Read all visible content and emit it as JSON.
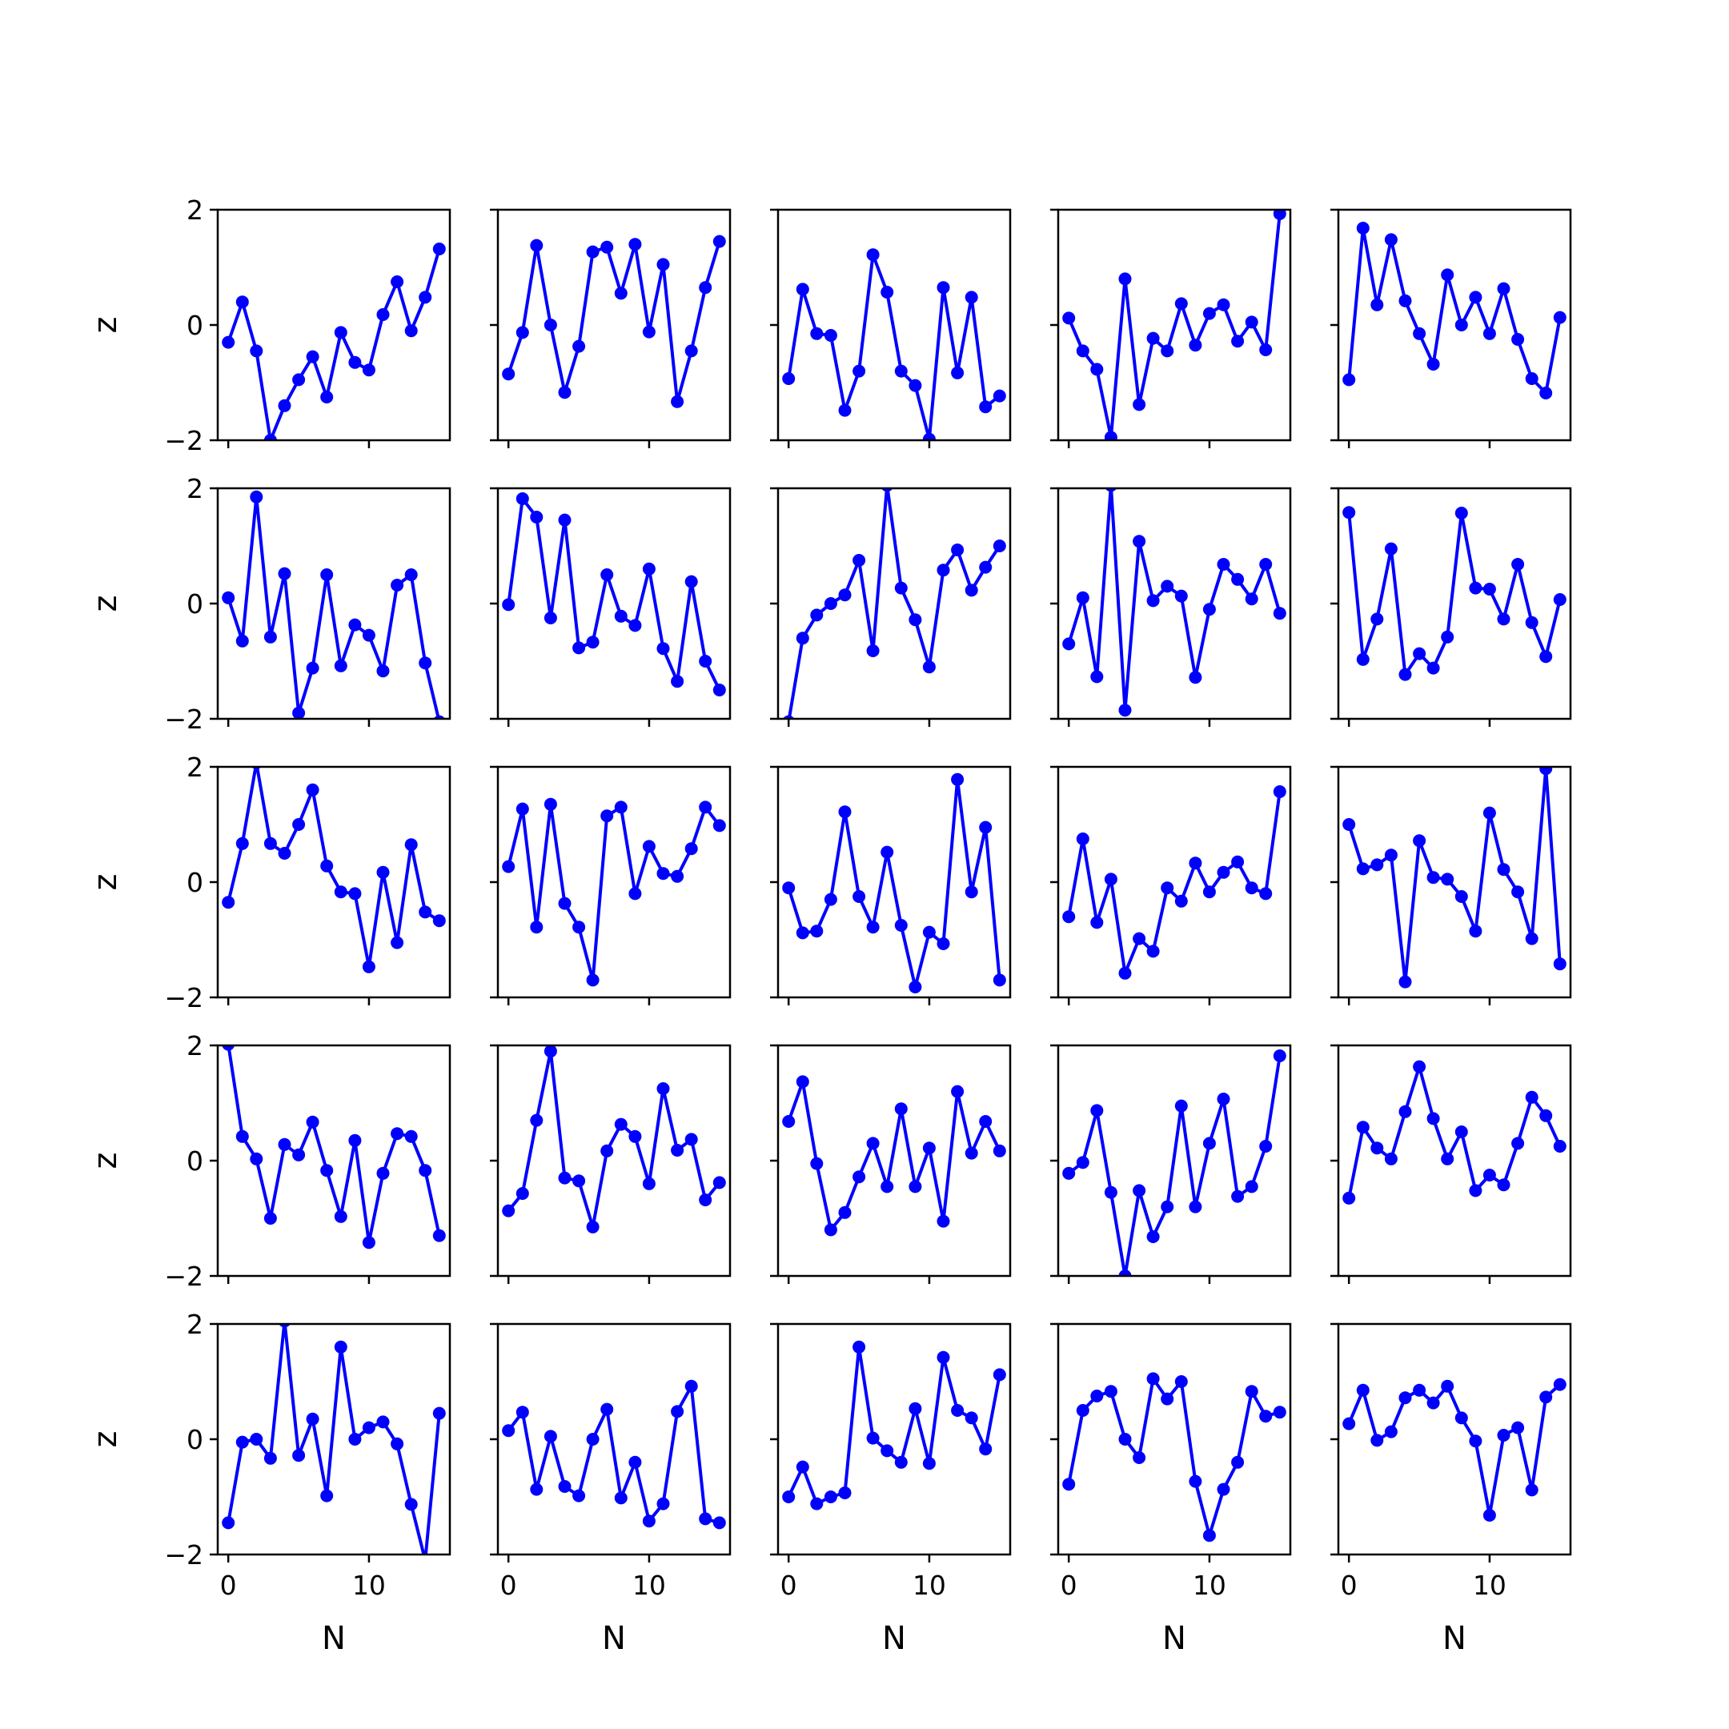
{
  "chart_data": {
    "type": "line",
    "layout": "5x5 grid of small multiples, shared axes",
    "rows": 5,
    "cols": 5,
    "xlabel": "N",
    "ylabel": "z",
    "xlim": [
      -0.75,
      15.75
    ],
    "ylim": [
      -2,
      2
    ],
    "x_ticks": [
      0,
      10
    ],
    "y_ticks": [
      -2,
      0,
      2
    ],
    "x_tick_labels": [
      "0",
      "10"
    ],
    "y_tick_labels": [
      "−2",
      "0",
      "2"
    ],
    "x": [
      0,
      1,
      2,
      3,
      4,
      5,
      6,
      7,
      8,
      9,
      10,
      11,
      12,
      13,
      14,
      15
    ],
    "series_color": "#0000ff",
    "marker": "circle",
    "grid": false,
    "legend": "none",
    "panels": [
      {
        "values": [
          -0.3,
          0.4,
          -0.45,
          -2.0,
          -1.4,
          -0.95,
          -0.55,
          -1.25,
          -0.13,
          -0.65,
          -0.78,
          0.18,
          0.75,
          -0.1,
          0.48,
          1.32
        ]
      },
      {
        "values": [
          -0.85,
          -0.13,
          1.38,
          0.0,
          -1.17,
          -0.37,
          1.27,
          1.35,
          0.55,
          1.4,
          -0.12,
          1.05,
          -1.33,
          -0.45,
          0.65,
          1.45
        ]
      },
      {
        "values": [
          -0.93,
          0.62,
          -0.15,
          -0.18,
          -1.48,
          -0.8,
          1.22,
          0.57,
          -0.8,
          -1.05,
          -1.98,
          0.65,
          -0.83,
          0.48,
          -1.42,
          -1.23
        ]
      },
      {
        "values": [
          0.12,
          -0.45,
          -0.77,
          -1.95,
          0.8,
          -1.38,
          -0.23,
          -0.45,
          0.37,
          -0.35,
          0.2,
          0.35,
          -0.28,
          0.05,
          -0.43,
          1.93
        ]
      },
      {
        "values": [
          -0.95,
          1.68,
          0.35,
          1.48,
          0.42,
          -0.15,
          -0.68,
          0.87,
          0.0,
          0.48,
          -0.15,
          0.63,
          -0.25,
          -0.93,
          -1.18,
          0.13
        ]
      },
      {
        "values": [
          0.1,
          -0.65,
          1.85,
          -0.58,
          0.52,
          -1.9,
          -1.12,
          0.5,
          -1.08,
          -0.37,
          -0.55,
          -1.17,
          0.32,
          0.5,
          -1.03,
          -2.05
        ]
      },
      {
        "values": [
          -0.02,
          1.82,
          1.5,
          -0.25,
          1.45,
          -0.77,
          -0.67,
          0.5,
          -0.22,
          -0.38,
          0.6,
          -0.78,
          -1.35,
          0.38,
          -1.0,
          -1.5
        ]
      },
      {
        "values": [
          -2.05,
          -0.6,
          -0.2,
          0.0,
          0.15,
          0.75,
          -0.82,
          2.05,
          0.27,
          -0.28,
          -1.1,
          0.58,
          0.93,
          0.23,
          0.63,
          1.0
        ]
      },
      {
        "values": [
          -0.7,
          0.1,
          -1.27,
          2.05,
          -1.85,
          1.08,
          0.05,
          0.3,
          0.13,
          -1.28,
          -0.1,
          0.68,
          0.42,
          0.08,
          0.68,
          -0.17
        ]
      },
      {
        "values": [
          1.58,
          -0.97,
          -0.27,
          0.95,
          -1.23,
          -0.87,
          -1.12,
          -0.58,
          1.57,
          0.27,
          0.25,
          -0.27,
          0.68,
          -0.33,
          -0.92,
          0.07
        ]
      },
      {
        "values": [
          -0.35,
          0.67,
          2.07,
          0.67,
          0.5,
          1.0,
          1.6,
          0.28,
          -0.17,
          -0.2,
          -1.47,
          0.17,
          -1.05,
          0.65,
          -0.52,
          -0.67
        ]
      },
      {
        "values": [
          0.27,
          1.27,
          -0.78,
          1.35,
          -0.37,
          -0.78,
          -1.7,
          1.15,
          1.3,
          -0.2,
          0.62,
          0.15,
          0.1,
          0.58,
          1.3,
          0.98
        ]
      },
      {
        "values": [
          -0.1,
          -0.88,
          -0.85,
          -0.3,
          1.22,
          -0.25,
          -0.78,
          0.52,
          -0.75,
          -1.82,
          -0.87,
          -1.07,
          1.78,
          -0.17,
          0.95,
          -1.7
        ]
      },
      {
        "values": [
          -0.6,
          0.75,
          -0.7,
          0.05,
          -1.58,
          -0.98,
          -1.2,
          -0.1,
          -0.33,
          0.33,
          -0.17,
          0.17,
          0.35,
          -0.1,
          -0.2,
          1.57
        ]
      },
      {
        "values": [
          1.0,
          0.23,
          0.3,
          0.47,
          -1.73,
          0.72,
          0.08,
          0.05,
          -0.25,
          -0.85,
          1.2,
          0.22,
          -0.17,
          -0.98,
          1.97,
          -1.42
        ]
      },
      {
        "values": [
          2.02,
          0.42,
          0.03,
          -1.0,
          0.28,
          0.1,
          0.67,
          -0.17,
          -0.97,
          0.35,
          -1.42,
          -0.22,
          0.47,
          0.42,
          -0.17,
          -1.3
        ]
      },
      {
        "values": [
          -0.87,
          -0.57,
          0.7,
          1.9,
          -0.3,
          -0.35,
          -1.15,
          0.17,
          0.63,
          0.42,
          -0.4,
          1.25,
          0.18,
          0.37,
          -0.68,
          -0.38
        ]
      },
      {
        "values": [
          0.68,
          1.37,
          -0.05,
          -1.2,
          -0.9,
          -0.28,
          0.3,
          -0.45,
          0.9,
          -0.45,
          0.22,
          -1.05,
          1.2,
          0.13,
          0.68,
          0.17
        ]
      },
      {
        "values": [
          -0.22,
          -0.03,
          0.87,
          -0.55,
          -2.0,
          -0.52,
          -1.32,
          -0.8,
          0.95,
          -0.8,
          0.3,
          1.07,
          -0.62,
          -0.45,
          0.25,
          1.82
        ]
      },
      {
        "values": [
          -0.65,
          0.58,
          0.22,
          0.03,
          0.85,
          1.63,
          0.73,
          0.03,
          0.5,
          -0.52,
          -0.25,
          -0.42,
          0.3,
          1.1,
          0.78,
          0.25
        ]
      },
      {
        "values": [
          -1.45,
          -0.05,
          0.0,
          -0.33,
          2.05,
          -0.28,
          0.35,
          -0.98,
          1.6,
          0.0,
          0.2,
          0.3,
          -0.08,
          -1.13,
          -2.1,
          0.45
        ]
      },
      {
        "values": [
          0.15,
          0.47,
          -0.87,
          0.05,
          -0.82,
          -0.98,
          0.0,
          0.52,
          -1.02,
          -0.4,
          -1.42,
          -1.12,
          0.48,
          0.92,
          -1.38,
          -1.45
        ]
      },
      {
        "values": [
          -1.0,
          -0.48,
          -1.12,
          -1.0,
          -0.93,
          1.6,
          0.02,
          -0.2,
          -0.4,
          0.53,
          -0.42,
          1.42,
          0.5,
          0.37,
          -0.17,
          1.12
        ]
      },
      {
        "values": [
          -0.78,
          0.5,
          0.75,
          0.83,
          0.0,
          -0.32,
          1.05,
          0.7,
          1.0,
          -0.73,
          -1.67,
          -0.87,
          -0.4,
          0.83,
          0.4,
          0.47
        ]
      },
      {
        "values": [
          0.27,
          0.85,
          -0.02,
          0.13,
          0.72,
          0.85,
          0.63,
          0.92,
          0.37,
          -0.03,
          -1.32,
          0.07,
          0.2,
          -0.88,
          0.73,
          0.95
        ]
      }
    ]
  }
}
